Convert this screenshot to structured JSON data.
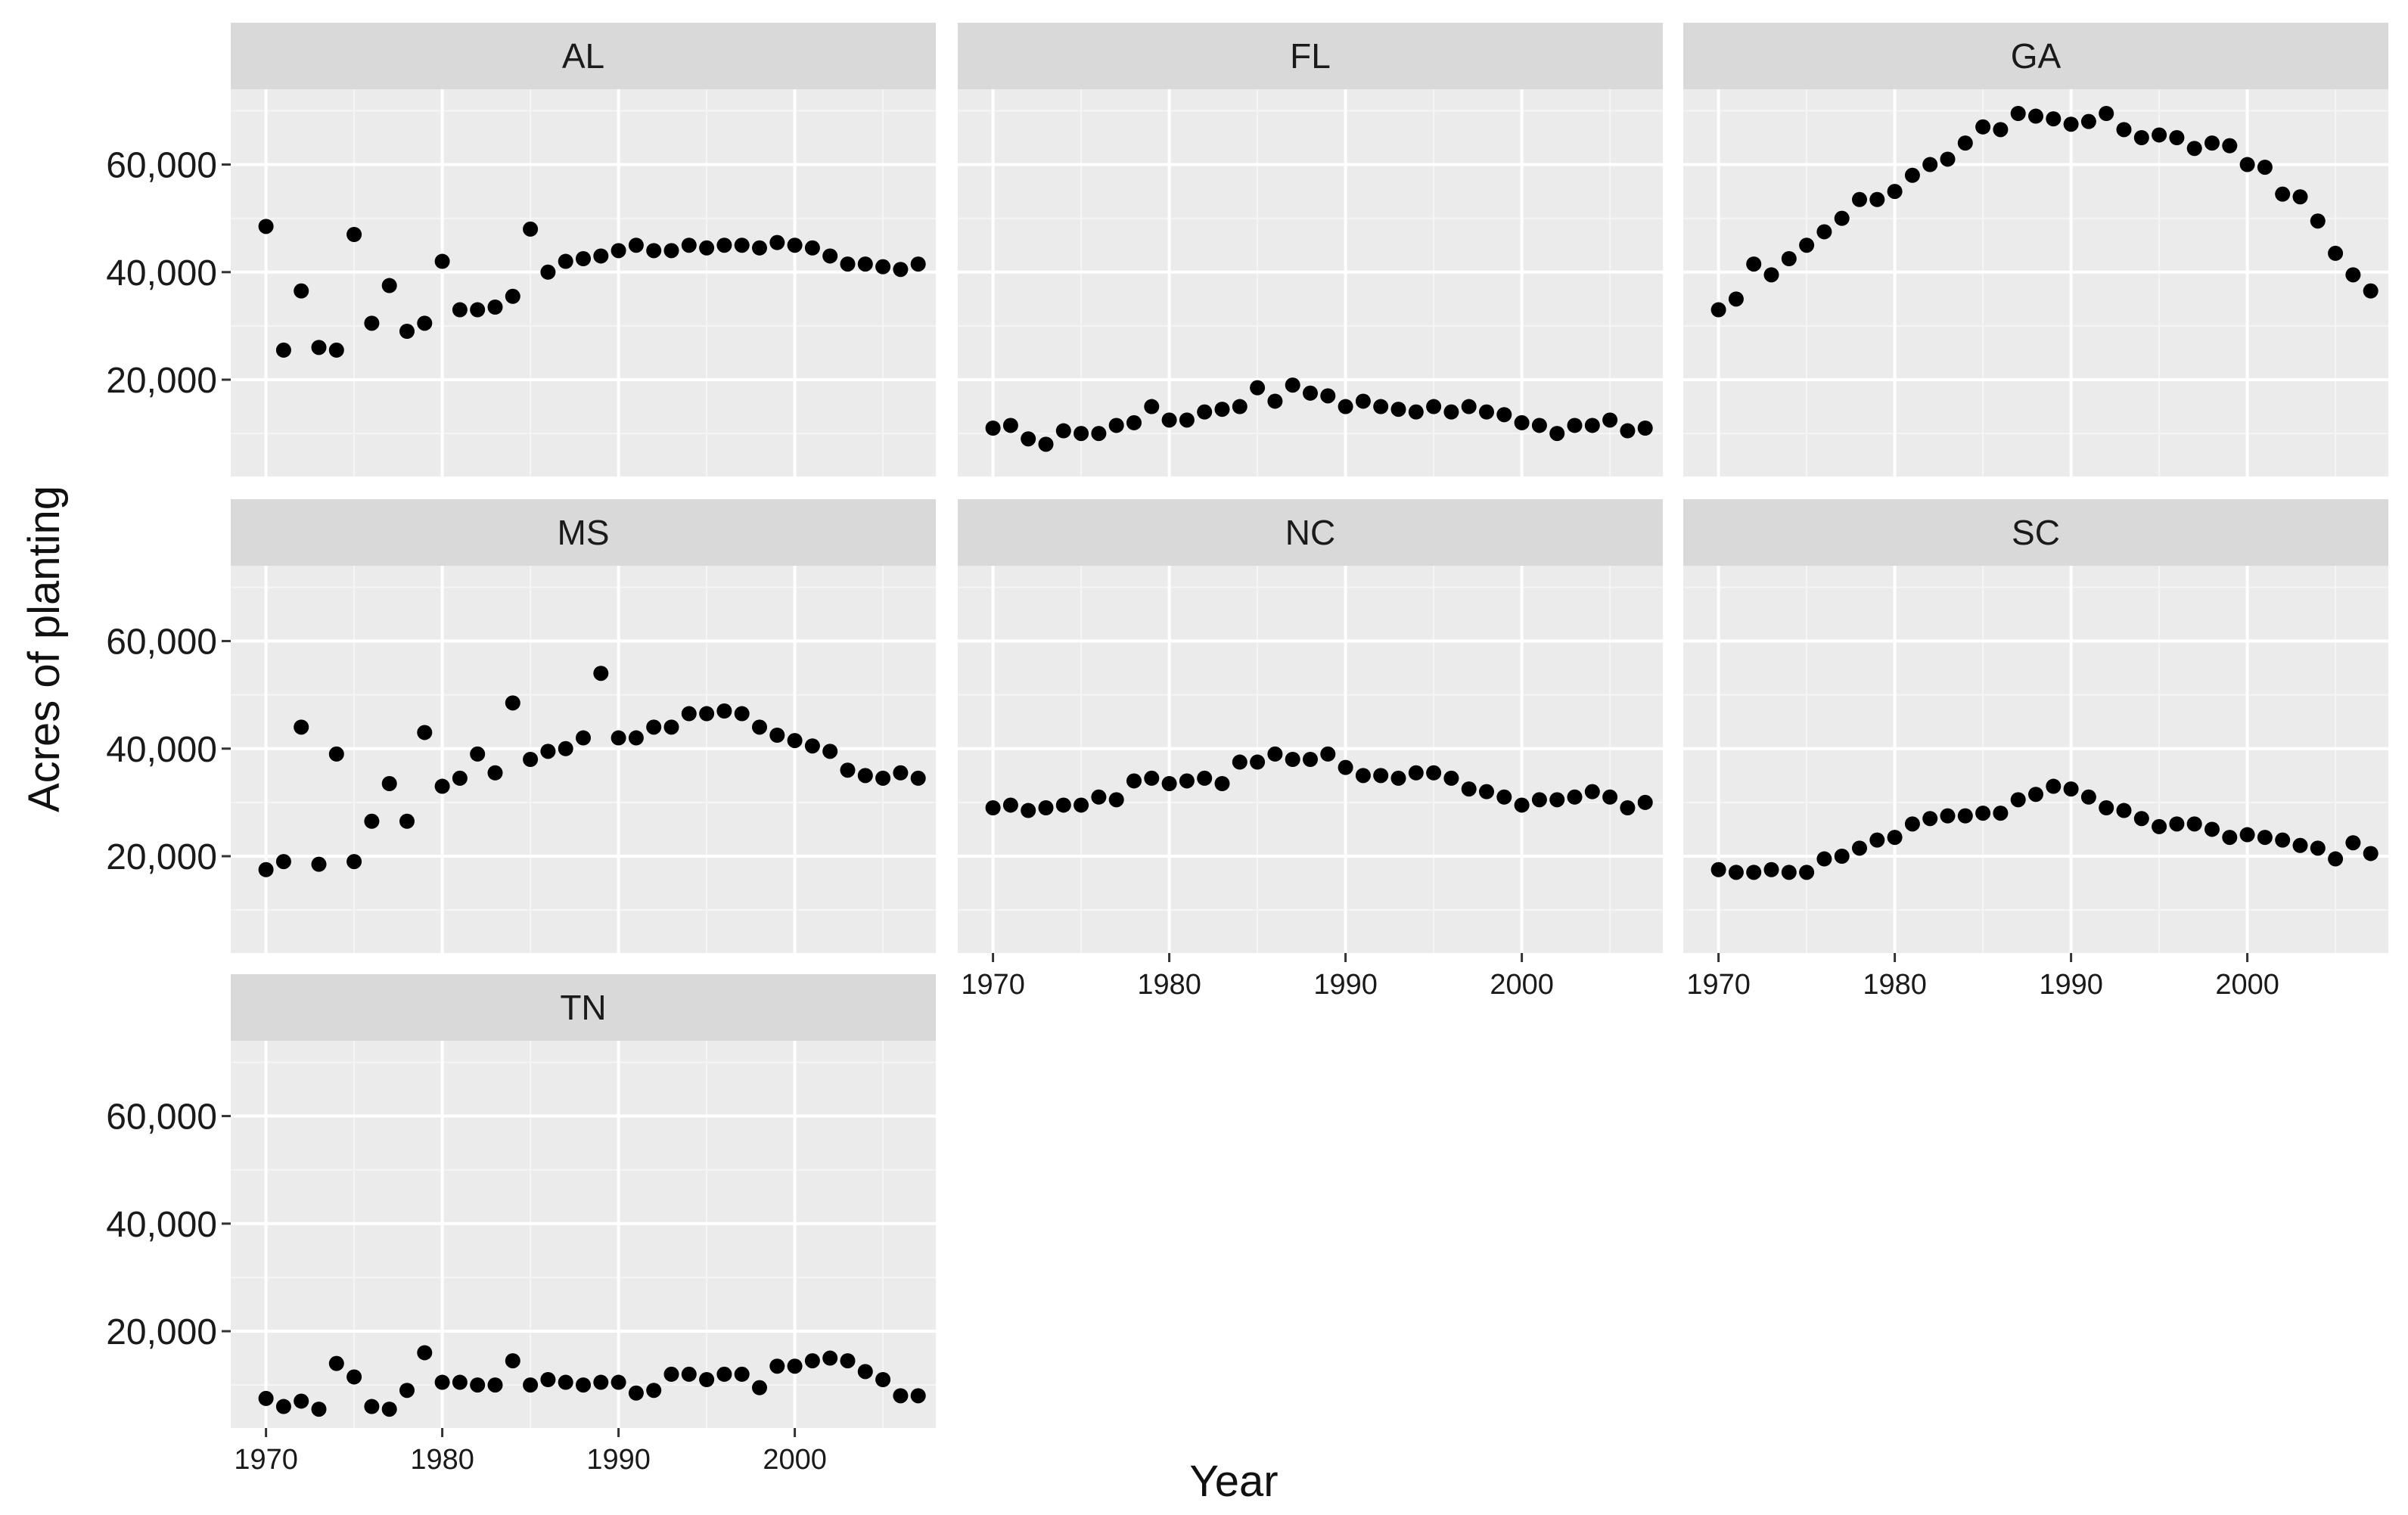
{
  "chart_data": {
    "type": "scatter",
    "layout": "facet_wrap",
    "xlabel": "Year",
    "ylabel": "Acres of planting",
    "xlim": [
      1968,
      2008
    ],
    "ylim": [
      2000,
      74000
    ],
    "x_ticks": [
      1970,
      1980,
      1990,
      2000
    ],
    "x_tick_labels": [
      "1970",
      "1980",
      "1990",
      "2000"
    ],
    "y_ticks": [
      20000,
      40000,
      60000
    ],
    "y_tick_labels": [
      "20,000",
      "40,000",
      "60,000"
    ],
    "grid": true,
    "x": [
      1970,
      1971,
      1972,
      1973,
      1974,
      1975,
      1976,
      1977,
      1978,
      1979,
      1980,
      1981,
      1982,
      1983,
      1984,
      1985,
      1986,
      1987,
      1988,
      1989,
      1990,
      1991,
      1992,
      1993,
      1994,
      1995,
      1996,
      1997,
      1998,
      1999,
      2000,
      2001,
      2002,
      2003,
      2004,
      2005,
      2006,
      2007
    ],
    "panels": [
      {
        "name": "AL",
        "values": [
          48500,
          25500,
          36500,
          26000,
          25500,
          47000,
          30500,
          37500,
          29000,
          30500,
          42000,
          33000,
          33000,
          33500,
          35500,
          48000,
          40000,
          42000,
          42500,
          43000,
          44000,
          45000,
          44000,
          44000,
          45000,
          44500,
          45000,
          45000,
          44500,
          45500,
          45000,
          44500,
          43000,
          41500,
          41500,
          41000,
          40500,
          41500
        ]
      },
      {
        "name": "FL",
        "values": [
          11000,
          11500,
          9000,
          8000,
          10500,
          10000,
          10000,
          11500,
          12000,
          15000,
          12500,
          12500,
          14000,
          14500,
          15000,
          18500,
          16000,
          19000,
          17500,
          17000,
          15000,
          16000,
          15000,
          14500,
          14000,
          15000,
          14000,
          15000,
          14000,
          13500,
          12000,
          11500,
          10000,
          11500,
          11500,
          12500,
          10500,
          11000
        ]
      },
      {
        "name": "GA",
        "values": [
          33000,
          35000,
          41500,
          39500,
          42500,
          45000,
          47500,
          50000,
          53500,
          53500,
          55000,
          58000,
          60000,
          61000,
          64000,
          67000,
          66500,
          69500,
          69000,
          68500,
          67500,
          68000,
          69500,
          66500,
          65000,
          65500,
          65000,
          63000,
          64000,
          63500,
          60000,
          59500,
          54500,
          54000,
          49500,
          43500,
          39500,
          36500
        ]
      },
      {
        "name": "MS",
        "values": [
          17500,
          19000,
          44000,
          18500,
          39000,
          19000,
          26500,
          33500,
          26500,
          43000,
          33000,
          34500,
          39000,
          35500,
          48500,
          38000,
          39500,
          40000,
          42000,
          54000,
          42000,
          42000,
          44000,
          44000,
          46500,
          46500,
          47000,
          46500,
          44000,
          42500,
          41500,
          40500,
          39500,
          36000,
          35000,
          34500,
          35500,
          34500
        ]
      },
      {
        "name": "NC",
        "values": [
          29000,
          29500,
          28500,
          29000,
          29500,
          29500,
          31000,
          30500,
          34000,
          34500,
          33500,
          34000,
          34500,
          33500,
          37500,
          37500,
          39000,
          38000,
          38000,
          39000,
          36500,
          35000,
          35000,
          34500,
          35500,
          35500,
          34500,
          32500,
          32000,
          31000,
          29500,
          30500,
          30500,
          31000,
          32000,
          31000,
          29000,
          30000
        ]
      },
      {
        "name": "SC",
        "values": [
          17500,
          17000,
          17000,
          17500,
          17000,
          17000,
          19500,
          20000,
          21500,
          23000,
          23500,
          26000,
          27000,
          27500,
          27500,
          28000,
          28000,
          30500,
          31500,
          33000,
          32500,
          31000,
          29000,
          28500,
          27000,
          25500,
          26000,
          26000,
          25000,
          23500,
          24000,
          23500,
          23000,
          22000,
          21500,
          19500,
          22500,
          20500
        ]
      },
      {
        "name": "TN",
        "values": [
          7500,
          6000,
          7000,
          5500,
          14000,
          11500,
          6000,
          5500,
          9000,
          16000,
          10500,
          10500,
          10000,
          10000,
          14500,
          10000,
          11000,
          10500,
          10000,
          10500,
          10500,
          8500,
          9000,
          12000,
          12000,
          11000,
          12000,
          12000,
          9500,
          13500,
          13500,
          14500,
          15000,
          14500,
          12500,
          11000,
          8000,
          8000
        ]
      }
    ]
  }
}
